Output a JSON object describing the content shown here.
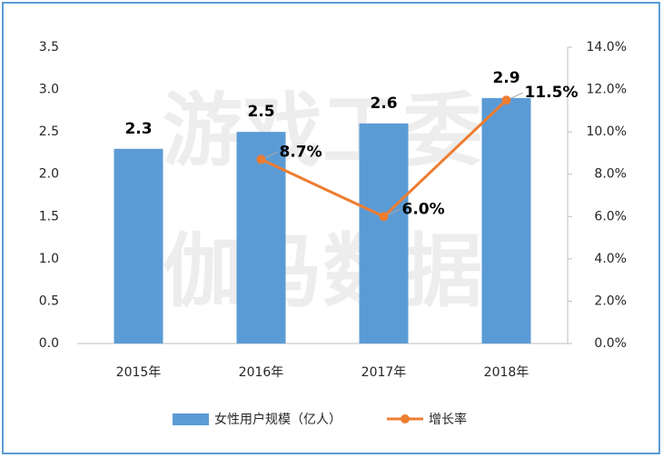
{
  "chart_data": {
    "type": "bar-line",
    "watermark": [
      "游戏工委",
      "伽马数据"
    ],
    "categories": [
      "2015年",
      "2016年",
      "2017年",
      "2018年"
    ],
    "series": [
      {
        "name": "女性用户规模（亿人）",
        "type": "bar",
        "color": "#5b9bd5",
        "values": [
          2.3,
          2.5,
          2.6,
          2.9
        ]
      },
      {
        "name": "增长率",
        "type": "line",
        "axis": "y2",
        "color": "#ed7d31",
        "values": [
          null,
          8.7,
          6.0,
          11.5
        ],
        "value_labels": [
          null,
          "8.7%",
          "6.0%",
          "11.5%"
        ]
      }
    ],
    "ylim": [
      0,
      3.5
    ],
    "yticks": [
      {
        "value": 0,
        "label": "0.0"
      },
      0.5,
      {
        "value": 1,
        "label": "1.0"
      },
      1.5,
      {
        "value": 2,
        "label": "2.0"
      },
      2.5,
      {
        "value": 3,
        "label": "3.0"
      },
      3.5
    ],
    "y2lim": [
      0,
      14
    ],
    "y2ticks": [
      {
        "value": 0,
        "label": "0.0%"
      },
      {
        "value": 2,
        "label": "2.0%"
      },
      {
        "value": 4,
        "label": "4.0%"
      },
      {
        "value": 6,
        "label": "6.0%"
      },
      {
        "value": 8,
        "label": "8.0%"
      },
      {
        "value": 10,
        "label": "10.0%"
      },
      {
        "value": 12,
        "label": "12.0%"
      },
      {
        "value": 14,
        "label": "14.0%"
      }
    ],
    "grid": false,
    "legend": "bottom"
  }
}
